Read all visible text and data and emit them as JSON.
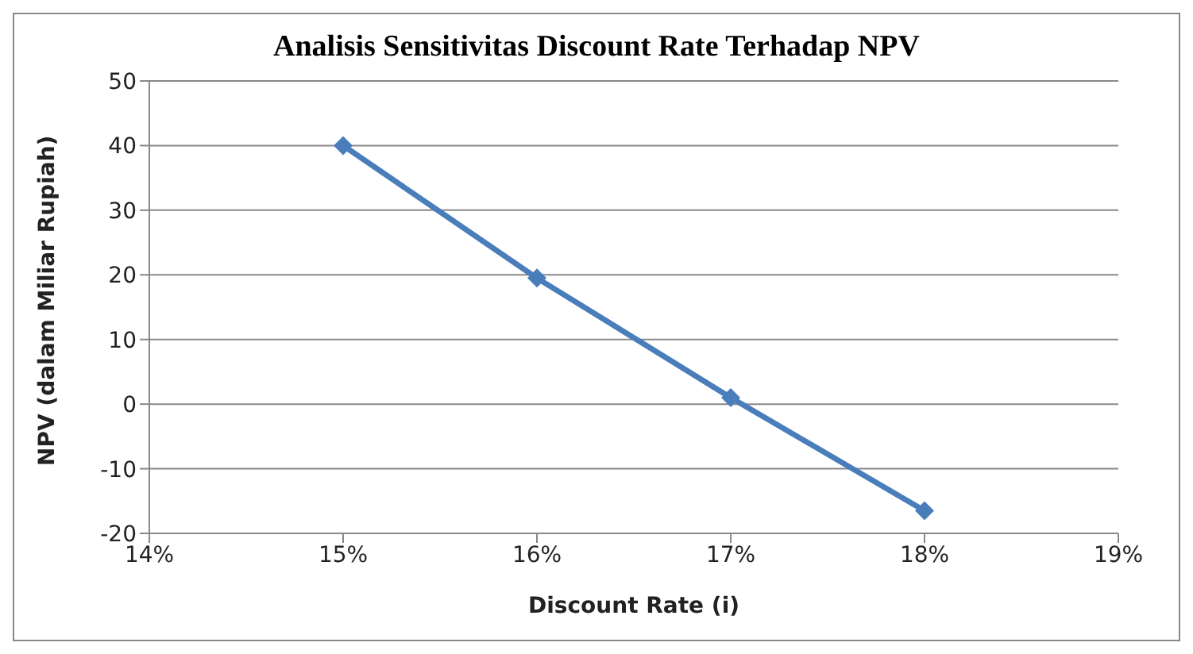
{
  "chart_data": {
    "type": "line",
    "title": "Analisis Sensitivitas Discount Rate Terhadap NPV",
    "xlabel": "Discount Rate (i)",
    "ylabel": "NPV (dalam Miliar Rupiah)",
    "x": [
      15,
      16,
      17,
      18
    ],
    "series": [
      {
        "color": "#4a7ebb",
        "values": [
          40,
          19.5,
          1,
          -16.5
        ]
      }
    ],
    "xlim": [
      14,
      19
    ],
    "xticks": [
      {
        "value": 14,
        "label": "14%"
      },
      {
        "value": 15,
        "label": "15%"
      },
      {
        "value": 16,
        "label": "16%"
      },
      {
        "value": 17,
        "label": "17%"
      },
      {
        "value": 18,
        "label": "18%"
      },
      {
        "value": 19,
        "label": "19%"
      }
    ],
    "ylim": [
      -20,
      50
    ],
    "yticks": [
      -20,
      -10,
      0,
      10,
      20,
      30,
      40,
      50
    ],
    "grid": "y",
    "legend": false,
    "marker": "diamond",
    "line_style": "solid"
  }
}
